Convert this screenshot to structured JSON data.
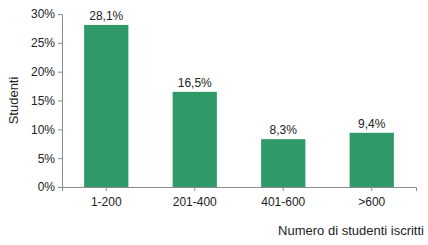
{
  "chart_data": {
    "type": "bar",
    "xlabel": "Numero di studenti iscritti",
    "ylabel": "Studenti",
    "categories": [
      "1-200",
      "201-400",
      "401-600",
      ">600"
    ],
    "values": [
      28.1,
      16.5,
      8.3,
      9.4
    ],
    "value_labels": [
      "28,1%",
      "16,5%",
      "8,3%",
      "9,4%"
    ],
    "color": "#2f9a68",
    "data_labels": true,
    "grid": false,
    "ylim": [
      0,
      30
    ],
    "yticks": [
      {
        "value": 0,
        "label": "0%"
      },
      {
        "value": 5,
        "label": "5%"
      },
      {
        "value": 10,
        "label": "10%"
      },
      {
        "value": 15,
        "label": "15%"
      },
      {
        "value": 20,
        "label": "20%"
      },
      {
        "value": 25,
        "label": "25%"
      },
      {
        "value": 30,
        "label": "30%"
      }
    ]
  }
}
